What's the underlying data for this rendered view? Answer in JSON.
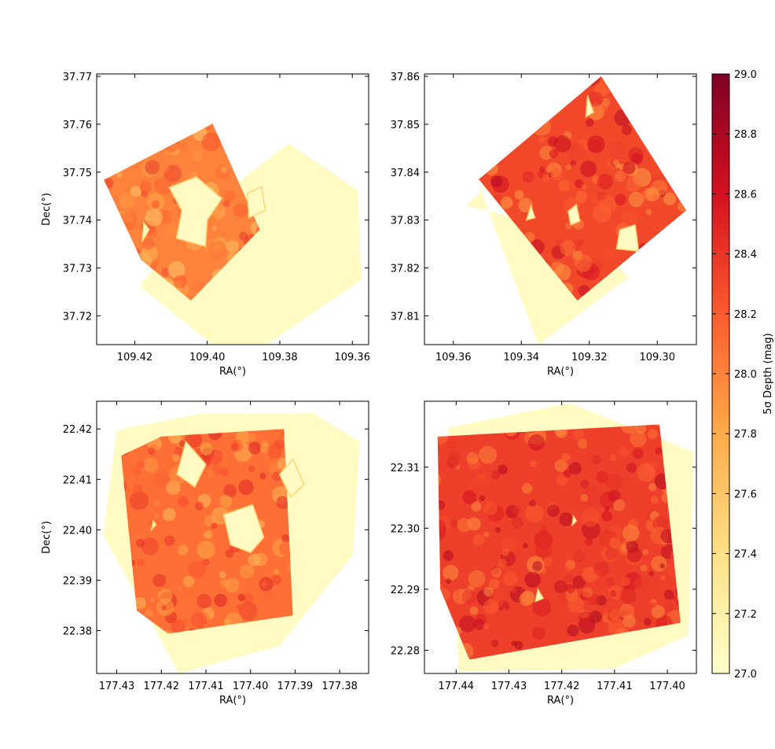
{
  "chart_data": {
    "type": "heatmap",
    "colorbar": {
      "label": "5σ Depth (mag)",
      "range": [
        27.0,
        29.0
      ],
      "ticks": [
        "27.0",
        "27.2",
        "27.4",
        "27.6",
        "27.8",
        "28.0",
        "28.2",
        "28.4",
        "28.6",
        "28.8",
        "29.0"
      ],
      "colormap": "YlOrRd",
      "colors": [
        "#ffffcc",
        "#fee187",
        "#feab49",
        "#fc5b2e",
        "#d41020",
        "#800026"
      ]
    },
    "panels": [
      {
        "xlabel": "RA(°)",
        "ylabel": "Dec(°)",
        "xlim": [
          109.4305,
          109.3555
        ],
        "ylim": [
          37.7705,
          37.714
        ],
        "xticks": [
          109.42,
          109.4,
          109.38,
          109.36
        ],
        "xtick_labels": [
          "109.42",
          "109.40",
          "109.38",
          "109.36"
        ],
        "yticks": [
          37.72,
          37.73,
          37.74,
          37.75,
          37.76,
          37.77
        ],
        "ytick_labels": [
          "37.72",
          "37.73",
          "37.74",
          "37.75",
          "37.76",
          "37.77"
        ],
        "coverage_depth": 27.05,
        "mean_depth": 28.0,
        "footprint": {
          "outer": [
            [
              109.3985,
              37.714
            ],
            [
              109.3835,
              37.714
            ],
            [
              109.3575,
              37.7276
            ],
            [
              109.3585,
              37.7462
            ],
            [
              109.3775,
              37.756
            ],
            [
              109.4055,
              37.7398
            ],
            [
              109.4185,
              37.7261
            ]
          ],
          "inner": [
            [
              109.4045,
              37.7232
            ],
            [
              109.3855,
              37.738
            ],
            [
              109.3985,
              37.7601
            ],
            [
              109.4285,
              37.7484
            ],
            [
              109.4182,
              37.7317
            ]
          ],
          "holes": [
            [
              [
                109.4085,
                37.7362
              ],
              [
                109.4005,
                37.7345
              ],
              [
                109.4,
                37.74
              ],
              [
                109.396,
                37.7445
              ],
              [
                109.403,
                37.749
              ],
              [
                109.4105,
                37.7468
              ],
              [
                109.407,
                37.742
              ]
            ],
            [
              [
                109.3885,
                37.7405
              ],
              [
                109.384,
                37.742
              ],
              [
                109.385,
                37.747
              ],
              [
                109.389,
                37.7455
              ]
            ],
            [
              [
                109.418,
                37.7355
              ],
              [
                109.416,
                37.738
              ],
              [
                109.4175,
                37.7395
              ]
            ]
          ]
        }
      },
      {
        "xlabel": "RA(°)",
        "ylabel": "",
        "xlim": [
          109.3685,
          109.2885
        ],
        "ylim": [
          37.8605,
          37.804
        ],
        "xticks": [
          109.36,
          109.34,
          109.32,
          109.3
        ],
        "xtick_labels": [
          "109.36",
          "109.34",
          "109.32",
          "109.30"
        ],
        "yticks": [
          37.81,
          37.82,
          37.83,
          37.84,
          37.85,
          37.86
        ],
        "ytick_labels": [
          "37.81",
          "37.82",
          "37.83",
          "37.84",
          "37.85",
          "37.86"
        ],
        "coverage_depth": 27.05,
        "mean_depth": 28.3,
        "footprint": {
          "outer": [
            [
              109.335,
              37.804
            ],
            [
              109.3085,
              37.818
            ],
            [
              109.3195,
              37.8268
            ],
            [
              109.3565,
              37.833
            ],
            [
              109.341,
              37.8425
            ],
            [
              109.352,
              37.8363
            ]
          ],
          "inner": [
            [
              109.3235,
              37.8132
            ],
            [
              109.2915,
              37.832
            ],
            [
              109.3165,
              37.86
            ],
            [
              109.3525,
              37.8385
            ]
          ],
          "holes": [
            [
              [
                109.312,
                37.824
              ],
              [
                109.3055,
                37.8235
              ],
              [
                109.3065,
                37.829
              ],
              [
                109.311,
                37.828
              ]
            ],
            [
              [
                109.3255,
                37.829
              ],
              [
                109.3228,
                37.8298
              ],
              [
                109.3238,
                37.8332
              ],
              [
                109.3262,
                37.8318
              ]
            ],
            [
              [
                109.3385,
                37.83
              ],
              [
                109.336,
                37.8305
              ],
              [
                109.3372,
                37.833
              ]
            ],
            [
              [
                109.321,
                37.8515
              ],
              [
                109.3188,
                37.8525
              ],
              [
                109.3205,
                37.856
              ]
            ]
          ]
        }
      },
      {
        "xlabel": "RA(°)",
        "ylabel": "Dec(°)",
        "xlim": [
          177.4345,
          177.3735
        ],
        "ylim": [
          22.4255,
          22.3715
        ],
        "xticks": [
          177.43,
          177.42,
          177.41,
          177.4,
          177.39,
          177.38
        ],
        "xtick_labels": [
          "177.43",
          "177.42",
          "177.41",
          "177.40",
          "177.39",
          "177.38"
        ],
        "yticks": [
          22.38,
          22.39,
          22.4,
          22.41,
          22.42
        ],
        "ytick_labels": [
          "22.38",
          "22.39",
          "22.40",
          "22.41",
          "22.42"
        ],
        "coverage_depth": 27.05,
        "mean_depth": 28.1,
        "footprint": {
          "outer": [
            [
              177.416,
              22.3715
            ],
            [
              177.3935,
              22.377
            ],
            [
              177.377,
              22.395
            ],
            [
              177.3755,
              22.4175
            ],
            [
              177.386,
              22.4232
            ],
            [
              177.4115,
              22.423
            ],
            [
              177.43,
              22.4198
            ],
            [
              177.433,
              22.399
            ]
          ],
          "inner": [
            [
              177.4185,
              22.3794
            ],
            [
              177.3905,
              22.383
            ],
            [
              177.3925,
              22.42
            ],
            [
              177.42,
              22.4185
            ],
            [
              177.429,
              22.4147
            ],
            [
              177.4255,
              22.384
            ]
          ],
          "holes": [
            [
              [
                177.4045,
                22.397
              ],
              [
                177.4,
                22.3955
              ],
              [
                177.397,
                22.3985
              ],
              [
                177.3995,
                22.405
              ],
              [
                177.406,
                22.403
              ]
            ],
            [
              [
                177.391,
                22.4065
              ],
              [
                177.388,
                22.409
              ],
              [
                177.3905,
                22.414
              ],
              [
                177.3935,
                22.411
              ]
            ],
            [
              [
                177.4165,
                22.411
              ],
              [
                177.4125,
                22.4085
              ],
              [
                177.41,
                22.413
              ],
              [
                177.4145,
                22.4175
              ]
            ],
            [
              [
                177.4222,
                22.4
              ],
              [
                177.4212,
                22.401
              ],
              [
                177.4218,
                22.4018
              ]
            ]
          ]
        }
      },
      {
        "xlabel": "RA(°)",
        "ylabel": "",
        "xlim": [
          177.446,
          177.3945
        ],
        "ylim": [
          22.3208,
          22.2762
        ],
        "xticks": [
          177.44,
          177.43,
          177.42,
          177.41,
          177.4
        ],
        "xtick_labels": [
          "177.44",
          "177.43",
          "177.42",
          "177.41",
          "177.40"
        ],
        "yticks": [
          22.28,
          22.29,
          22.3,
          22.31
        ],
        "ytick_labels": [
          "22.28",
          "22.29",
          "22.30",
          "22.31"
        ],
        "coverage_depth": 27.05,
        "mean_depth": 28.35,
        "footprint": {
          "outer": [
            [
              177.4395,
              22.2765
            ],
            [
              177.41,
              22.277
            ],
            [
              177.396,
              22.2825
            ],
            [
              177.395,
              22.3125
            ],
            [
              177.4185,
              22.3205
            ],
            [
              177.4415,
              22.3165
            ]
          ],
          "inner": [
            [
              177.4375,
              22.2785
            ],
            [
              177.3975,
              22.2845
            ],
            [
              177.4015,
              22.317
            ],
            [
              177.4435,
              22.315
            ],
            [
              177.443,
              22.29
            ]
          ],
          "holes": [
            [
              [
                177.418,
                22.3005
              ],
              [
                177.4172,
                22.3012
              ],
              [
                177.4178,
                22.302
              ]
            ],
            [
              [
                177.425,
                22.288
              ],
              [
                177.4235,
                22.2885
              ],
              [
                177.4245,
                22.29
              ]
            ]
          ]
        }
      }
    ]
  }
}
